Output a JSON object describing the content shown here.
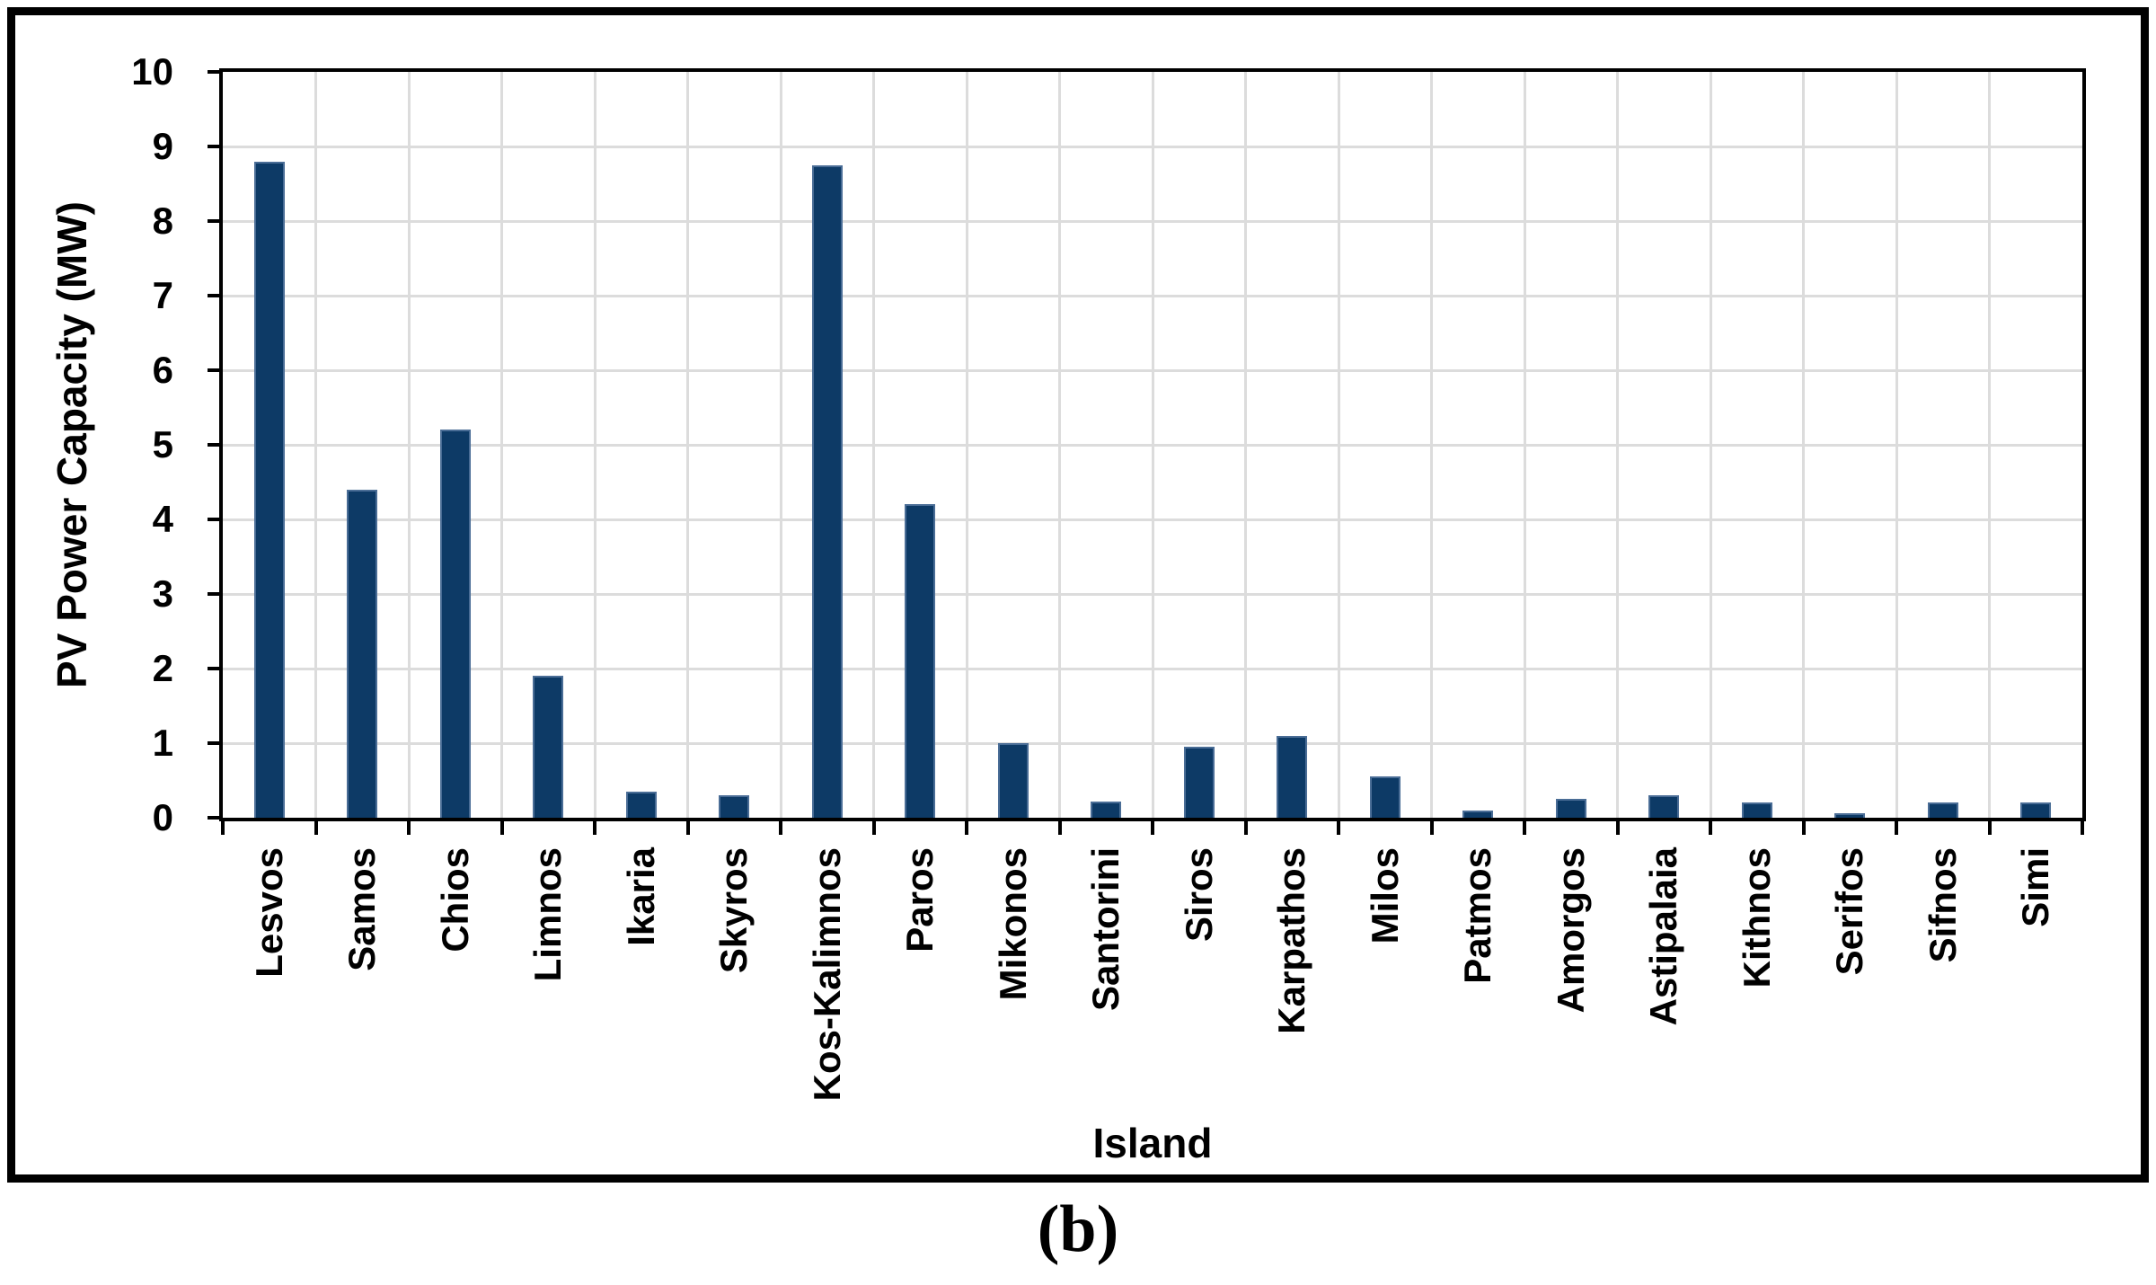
{
  "figure_label": "(b)",
  "colors": {
    "bar_fill": "#0d3a66",
    "bar_border": "#4a6d96",
    "gridline": "#dcdcdc",
    "axis": "#000000",
    "background": "#ffffff"
  },
  "chart_data": {
    "type": "bar",
    "title": "",
    "xlabel": "Island",
    "ylabel": "PV Power Capacity (MW)",
    "ylim": [
      0,
      10
    ],
    "yticks": [
      0,
      1,
      2,
      3,
      4,
      5,
      6,
      7,
      8,
      9,
      10
    ],
    "grid": "both, light gray, 1 MW horizontal steps and one vertical line per category boundary",
    "legend_position": "none",
    "categories": [
      "Lesvos",
      "Samos",
      "Chios",
      "Limnos",
      "Ikaria",
      "Skyros",
      "Kos-Kalimnos",
      "Paros",
      "Mikonos",
      "Santorini",
      "Siros",
      "Karpathos",
      "Milos",
      "Patmos",
      "Amorgos",
      "Astipalaia",
      "Kithnos",
      "Serifos",
      "Sifnos",
      "Simi"
    ],
    "values": [
      8.8,
      4.4,
      5.2,
      1.9,
      0.35,
      0.3,
      8.75,
      4.2,
      1.0,
      0.22,
      0.95,
      1.1,
      0.55,
      0.1,
      0.25,
      0.3,
      0.2,
      0.06,
      0.2,
      0.2
    ]
  }
}
